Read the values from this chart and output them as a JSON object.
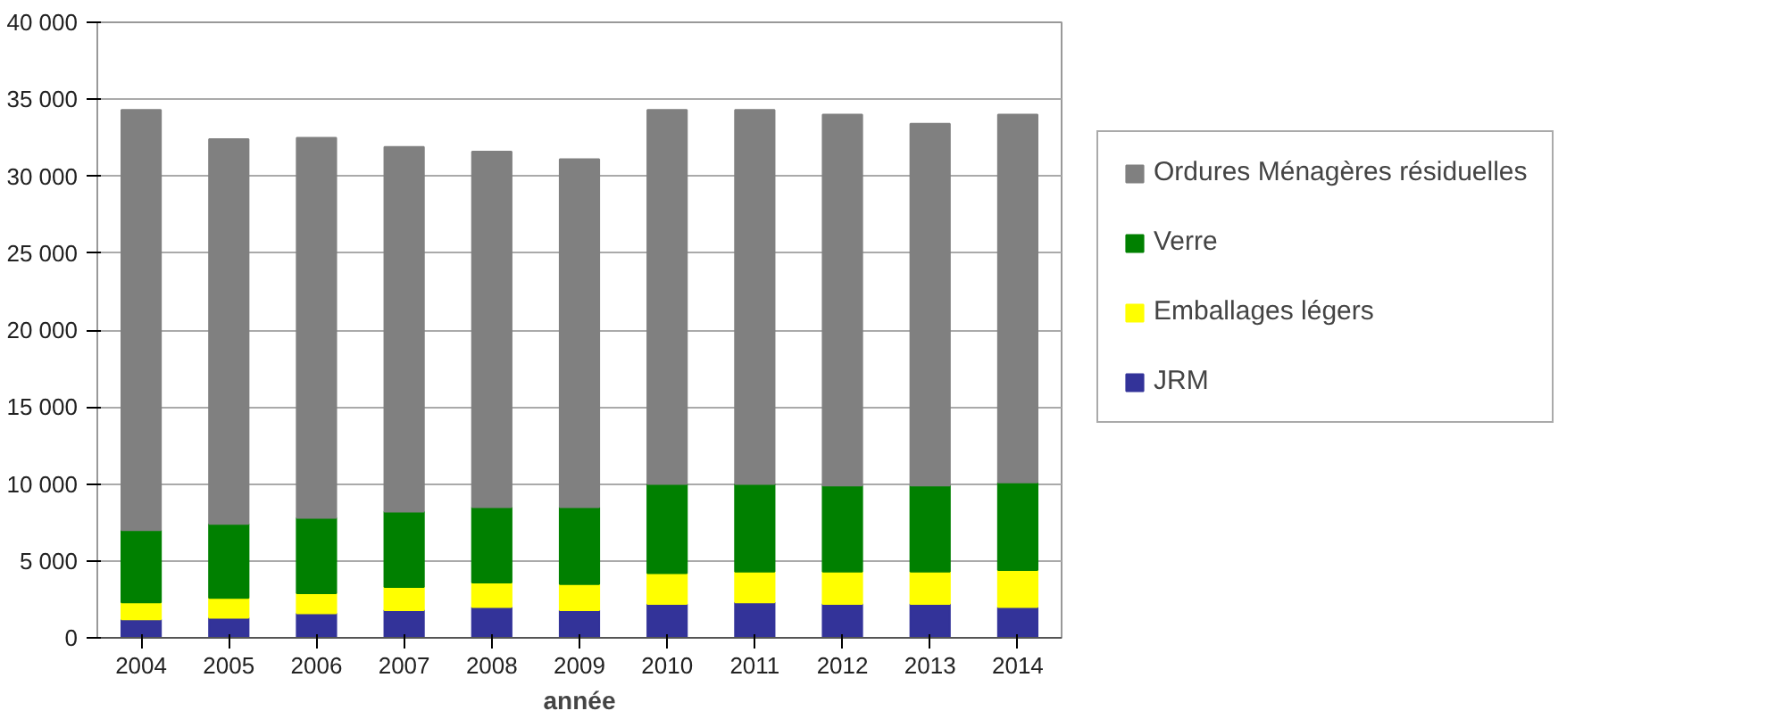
{
  "chart_data": {
    "type": "bar",
    "stacked": true,
    "xlabel": "année",
    "categories": [
      "2004",
      "2005",
      "2006",
      "2007",
      "2008",
      "2009",
      "2010",
      "2011",
      "2012",
      "2013",
      "2014"
    ],
    "series": [
      {
        "name": "JRM",
        "color": "#333399",
        "values": [
          1200,
          1300,
          1600,
          1800,
          2000,
          1800,
          2200,
          2300,
          2200,
          2200,
          2000
        ]
      },
      {
        "name": "Emballages légers",
        "color": "#ffff00",
        "values": [
          1100,
          1300,
          1300,
          1500,
          1600,
          1700,
          2000,
          2000,
          2100,
          2100,
          2400
        ]
      },
      {
        "name": "Verre",
        "color": "#008000",
        "values": [
          4700,
          4800,
          4900,
          4900,
          4900,
          5000,
          5800,
          5700,
          5600,
          5600,
          5700
        ]
      },
      {
        "name": "Ordures Ménagères résiduelles",
        "color": "#808080",
        "values": [
          27300,
          25000,
          24700,
          23700,
          23100,
          22600,
          24300,
          24300,
          24100,
          23500,
          23900
        ]
      }
    ],
    "ylim": [
      0,
      40000
    ],
    "yticks": [
      {
        "value": 0,
        "label": "0"
      },
      {
        "value": 5000,
        "label": "5 000"
      },
      {
        "value": 10000,
        "label": "10 000"
      },
      {
        "value": 15000,
        "label": "15 000"
      },
      {
        "value": 20000,
        "label": "20 000"
      },
      {
        "value": 25000,
        "label": "25 000"
      },
      {
        "value": 30000,
        "label": "30 000"
      },
      {
        "value": 35000,
        "label": "35 000"
      },
      {
        "value": 40000,
        "label": "40 000"
      }
    ],
    "grid": "y",
    "legend": "right"
  }
}
